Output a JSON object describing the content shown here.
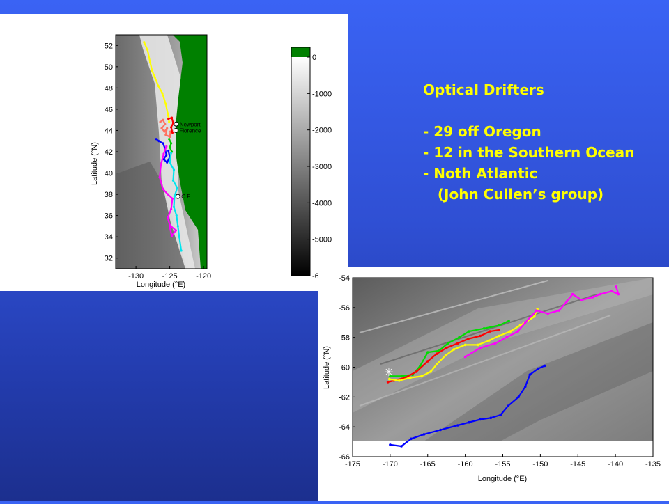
{
  "slide": {
    "bullets": [
      "Optical Drifters",
      "",
      "- 29 off Oregon",
      "- 12 in the Southern Ocean",
      "- Noth Atlantic",
      "   (John Cullen’s group)"
    ],
    "text_color": "#ffff00",
    "background_color": "#2f4fd3"
  },
  "chart_data": [
    {
      "type": "scatter",
      "name": "oregon",
      "xlabel": "Longitude (°E)",
      "ylabel": "Latitude (°N)",
      "xlim": [
        -133,
        -119.5
      ],
      "ylim": [
        31,
        53
      ],
      "xticks": [
        -130,
        -125,
        -120
      ],
      "yticks": [
        32,
        34,
        36,
        38,
        40,
        42,
        44,
        46,
        48,
        50,
        52
      ],
      "places": [
        {
          "label": "Newport",
          "lon": -124.05,
          "lat": 44.6
        },
        {
          "label": "Florence",
          "lon": -124.1,
          "lat": 44.0
        },
        {
          "label": "C.F.",
          "lon": -123.8,
          "lat": 37.8
        }
      ],
      "series": [
        {
          "color": "#ffff00",
          "points": [
            [
              -128.8,
              52.3
            ],
            [
              -128.3,
              51.6
            ],
            [
              -127.9,
              50.4
            ],
            [
              -127.6,
              49.6
            ],
            [
              -127.2,
              49.0
            ],
            [
              -126.7,
              48.2
            ],
            [
              -126.1,
              47.5
            ],
            [
              -125.6,
              46.5
            ],
            [
              -125.3,
              45.6
            ],
            [
              -125.1,
              44.8
            ]
          ]
        },
        {
          "color": "#ff7060",
          "points": [
            [
              -126.4,
              44.8
            ],
            [
              -126.0,
              45.0
            ],
            [
              -125.7,
              44.6
            ],
            [
              -126.2,
              44.2
            ],
            [
              -125.8,
              43.9
            ],
            [
              -125.4,
              44.2
            ],
            [
              -125.6,
              43.6
            ],
            [
              -125.0,
              43.4
            ],
            [
              -124.9,
              43.9
            ]
          ]
        },
        {
          "color": "#ff0000",
          "points": [
            [
              -125.2,
              45.1
            ],
            [
              -124.7,
              45.2
            ],
            [
              -124.5,
              44.7
            ],
            [
              -124.8,
              44.3
            ],
            [
              -124.6,
              43.8
            ]
          ]
        },
        {
          "color": "#00cc00",
          "points": [
            [
              -125.1,
              43.2
            ],
            [
              -124.8,
              42.8
            ],
            [
              -125.0,
              42.4
            ],
            [
              -124.7,
              42.0
            ]
          ]
        },
        {
          "color": "#0000ff",
          "points": [
            [
              -127.0,
              43.2
            ],
            [
              -126.6,
              43.0
            ],
            [
              -126.0,
              42.8
            ],
            [
              -125.7,
              42.3
            ],
            [
              -125.5,
              41.7
            ],
            [
              -125.9,
              41.3
            ],
            [
              -125.4,
              41.0
            ],
            [
              -125.0,
              41.5
            ],
            [
              -125.2,
              42.1
            ]
          ]
        },
        {
          "color": "#00e5ee",
          "points": [
            [
              -124.8,
              41.9
            ],
            [
              -125.0,
              41.0
            ],
            [
              -124.4,
              40.3
            ],
            [
              -124.5,
              39.3
            ],
            [
              -123.9,
              38.6
            ],
            [
              -124.3,
              37.8
            ],
            [
              -124.4,
              36.8
            ],
            [
              -124.0,
              36.0
            ],
            [
              -123.8,
              35.0
            ],
            [
              -123.6,
              34.0
            ],
            [
              -123.3,
              32.7
            ]
          ]
        },
        {
          "color": "#ff00ff",
          "points": [
            [
              -125.5,
              42.5
            ],
            [
              -125.9,
              41.8
            ],
            [
              -126.3,
              40.8
            ],
            [
              -126.5,
              39.6
            ],
            [
              -126.0,
              38.5
            ],
            [
              -125.3,
              38.0
            ],
            [
              -124.6,
              37.6
            ],
            [
              -124.8,
              36.6
            ],
            [
              -125.3,
              35.8
            ],
            [
              -125.0,
              35.1
            ],
            [
              -124.1,
              34.6
            ],
            [
              -124.7,
              34.1
            ],
            [
              -125.0,
              34.9
            ]
          ]
        }
      ]
    },
    {
      "type": "scatter",
      "name": "southern-ocean",
      "xlabel": "Longitude (°E)",
      "ylabel": "Latitude (°N)",
      "xlim": [
        -175,
        -135
      ],
      "ylim": [
        -66,
        -54
      ],
      "xticks": [
        -175,
        -170,
        -165,
        -160,
        -155,
        -150,
        -145,
        -140,
        -135
      ],
      "yticks": [
        -54,
        -56,
        -58,
        -60,
        -62,
        -64,
        -66
      ],
      "series": [
        {
          "color": "#0000ff",
          "points": [
            [
              -170.0,
              -65.2
            ],
            [
              -168.5,
              -65.3
            ],
            [
              -167.2,
              -64.8
            ],
            [
              -165.5,
              -64.5
            ],
            [
              -163.3,
              -64.2
            ],
            [
              -161.0,
              -63.9
            ],
            [
              -159.5,
              -63.7
            ],
            [
              -158.0,
              -63.5
            ],
            [
              -156.6,
              -63.4
            ],
            [
              -155.3,
              -63.2
            ],
            [
              -154.3,
              -62.6
            ],
            [
              -152.9,
              -62.0
            ],
            [
              -152.0,
              -61.3
            ],
            [
              -151.4,
              -60.5
            ],
            [
              -150.3,
              -60.1
            ],
            [
              -149.4,
              -59.9
            ]
          ]
        },
        {
          "color": "#00dd00",
          "points": [
            [
              -170.0,
              -60.6
            ],
            [
              -168.5,
              -60.6
            ],
            [
              -167.0,
              -60.5
            ],
            [
              -166.0,
              -59.9
            ],
            [
              -165.0,
              -59.0
            ],
            [
              -163.5,
              -58.9
            ],
            [
              -162.3,
              -58.4
            ],
            [
              -160.8,
              -58.0
            ],
            [
              -159.5,
              -57.6
            ],
            [
              -157.5,
              -57.4
            ],
            [
              -155.5,
              -57.2
            ],
            [
              -154.2,
              -56.9
            ]
          ]
        },
        {
          "color": "#ff0000",
          "points": [
            [
              -170.3,
              -61.0
            ],
            [
              -169.5,
              -60.9
            ],
            [
              -168.0,
              -60.7
            ],
            [
              -166.5,
              -60.3
            ],
            [
              -165.0,
              -59.6
            ],
            [
              -163.8,
              -59.1
            ],
            [
              -162.5,
              -58.7
            ],
            [
              -161.0,
              -58.4
            ],
            [
              -159.6,
              -58.1
            ],
            [
              -158.0,
              -57.9
            ],
            [
              -156.7,
              -57.6
            ],
            [
              -155.5,
              -57.5
            ]
          ]
        },
        {
          "color": "#ffff00",
          "points": [
            [
              -170.1,
              -60.8
            ],
            [
              -168.8,
              -60.9
            ],
            [
              -167.3,
              -60.7
            ],
            [
              -165.8,
              -60.6
            ],
            [
              -164.6,
              -60.3
            ],
            [
              -163.8,
              -59.8
            ],
            [
              -162.6,
              -59.2
            ],
            [
              -161.5,
              -58.8
            ],
            [
              -160.0,
              -58.5
            ],
            [
              -158.3,
              -58.5
            ],
            [
              -156.8,
              -58.2
            ],
            [
              -155.5,
              -57.9
            ],
            [
              -154.0,
              -57.6
            ],
            [
              -152.7,
              -57.2
            ],
            [
              -151.7,
              -56.9
            ],
            [
              -150.8,
              -56.6
            ],
            [
              -150.4,
              -56.1
            ]
          ]
        },
        {
          "color": "#ff00ff",
          "points": [
            [
              -160.0,
              -59.3
            ],
            [
              -158.0,
              -58.7
            ],
            [
              -156.0,
              -58.4
            ],
            [
              -154.5,
              -58.0
            ],
            [
              -153.0,
              -57.6
            ],
            [
              -152.0,
              -57.0
            ],
            [
              -150.5,
              -56.2
            ],
            [
              -149.0,
              -56.4
            ],
            [
              -147.5,
              -56.2
            ],
            [
              -146.5,
              -55.6
            ],
            [
              -145.7,
              -55.1
            ],
            [
              -144.5,
              -55.5
            ],
            [
              -143.0,
              -55.3
            ],
            [
              -142.0,
              -55.1
            ],
            [
              -140.5,
              -54.9
            ],
            [
              -139.6,
              -55.1
            ],
            [
              -139.9,
              -54.6
            ]
          ]
        }
      ]
    }
  ]
}
